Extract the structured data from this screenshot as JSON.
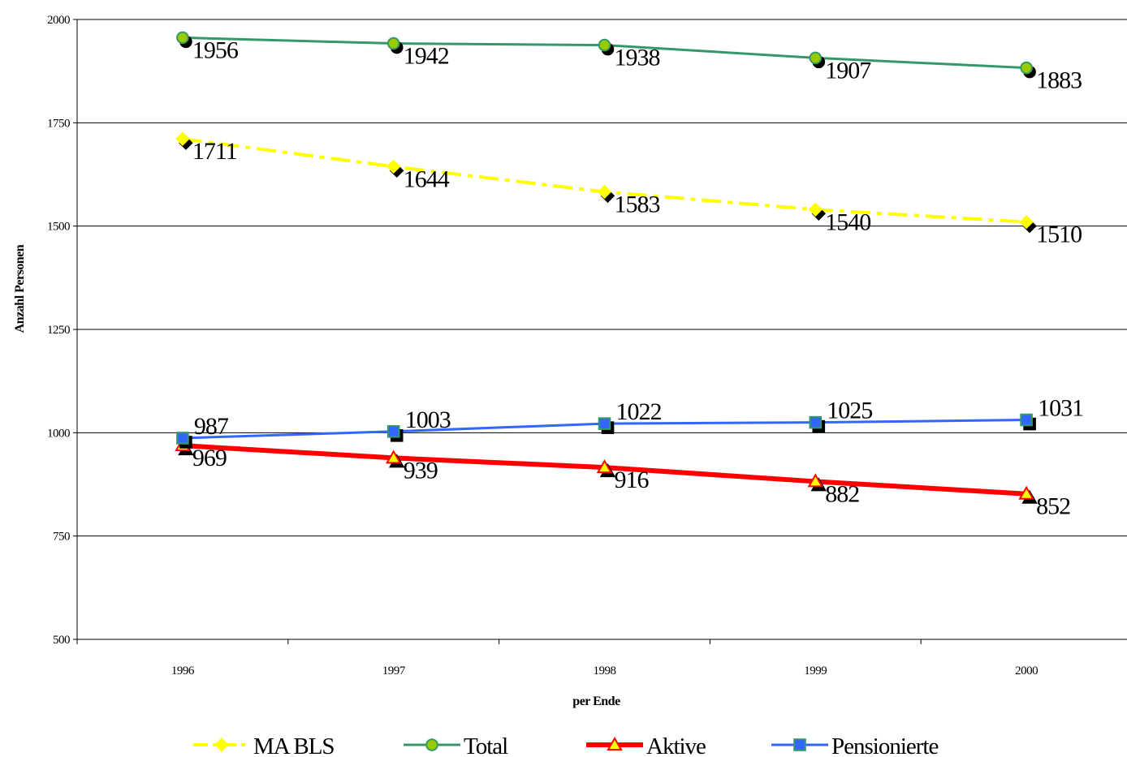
{
  "chart_data": {
    "type": "line",
    "title": "",
    "xlabel": "per Ende",
    "ylabel": "Anzahl Personen",
    "categories": [
      "1996",
      "1997",
      "1998",
      "1999",
      "2000"
    ],
    "ylim": [
      500,
      2000
    ],
    "yticks": [
      500,
      750,
      1000,
      1250,
      1500,
      1750,
      2000
    ],
    "grid": "horizontal",
    "legend_position": "bottom",
    "series": [
      {
        "name": "MA BLS",
        "values": [
          1711,
          1644,
          1583,
          1540,
          1510
        ],
        "color": "#FFFF00",
        "marker": "diamond",
        "line_style": "dash-dot"
      },
      {
        "name": "Total",
        "values": [
          1956,
          1942,
          1938,
          1907,
          1883
        ],
        "color": "#339966",
        "marker_fill": "#99CC00",
        "marker": "circle",
        "line_style": "solid"
      },
      {
        "name": "Aktive",
        "values": [
          969,
          939,
          916,
          882,
          852
        ],
        "color": "#FF0000",
        "marker_fill": "#FFFF00",
        "marker": "triangle",
        "line_style": "solid-thick"
      },
      {
        "name": "Pensionierte",
        "values": [
          987,
          1003,
          1022,
          1025,
          1031
        ],
        "color": "#3366FF",
        "marker": "square",
        "line_style": "solid"
      }
    ]
  }
}
